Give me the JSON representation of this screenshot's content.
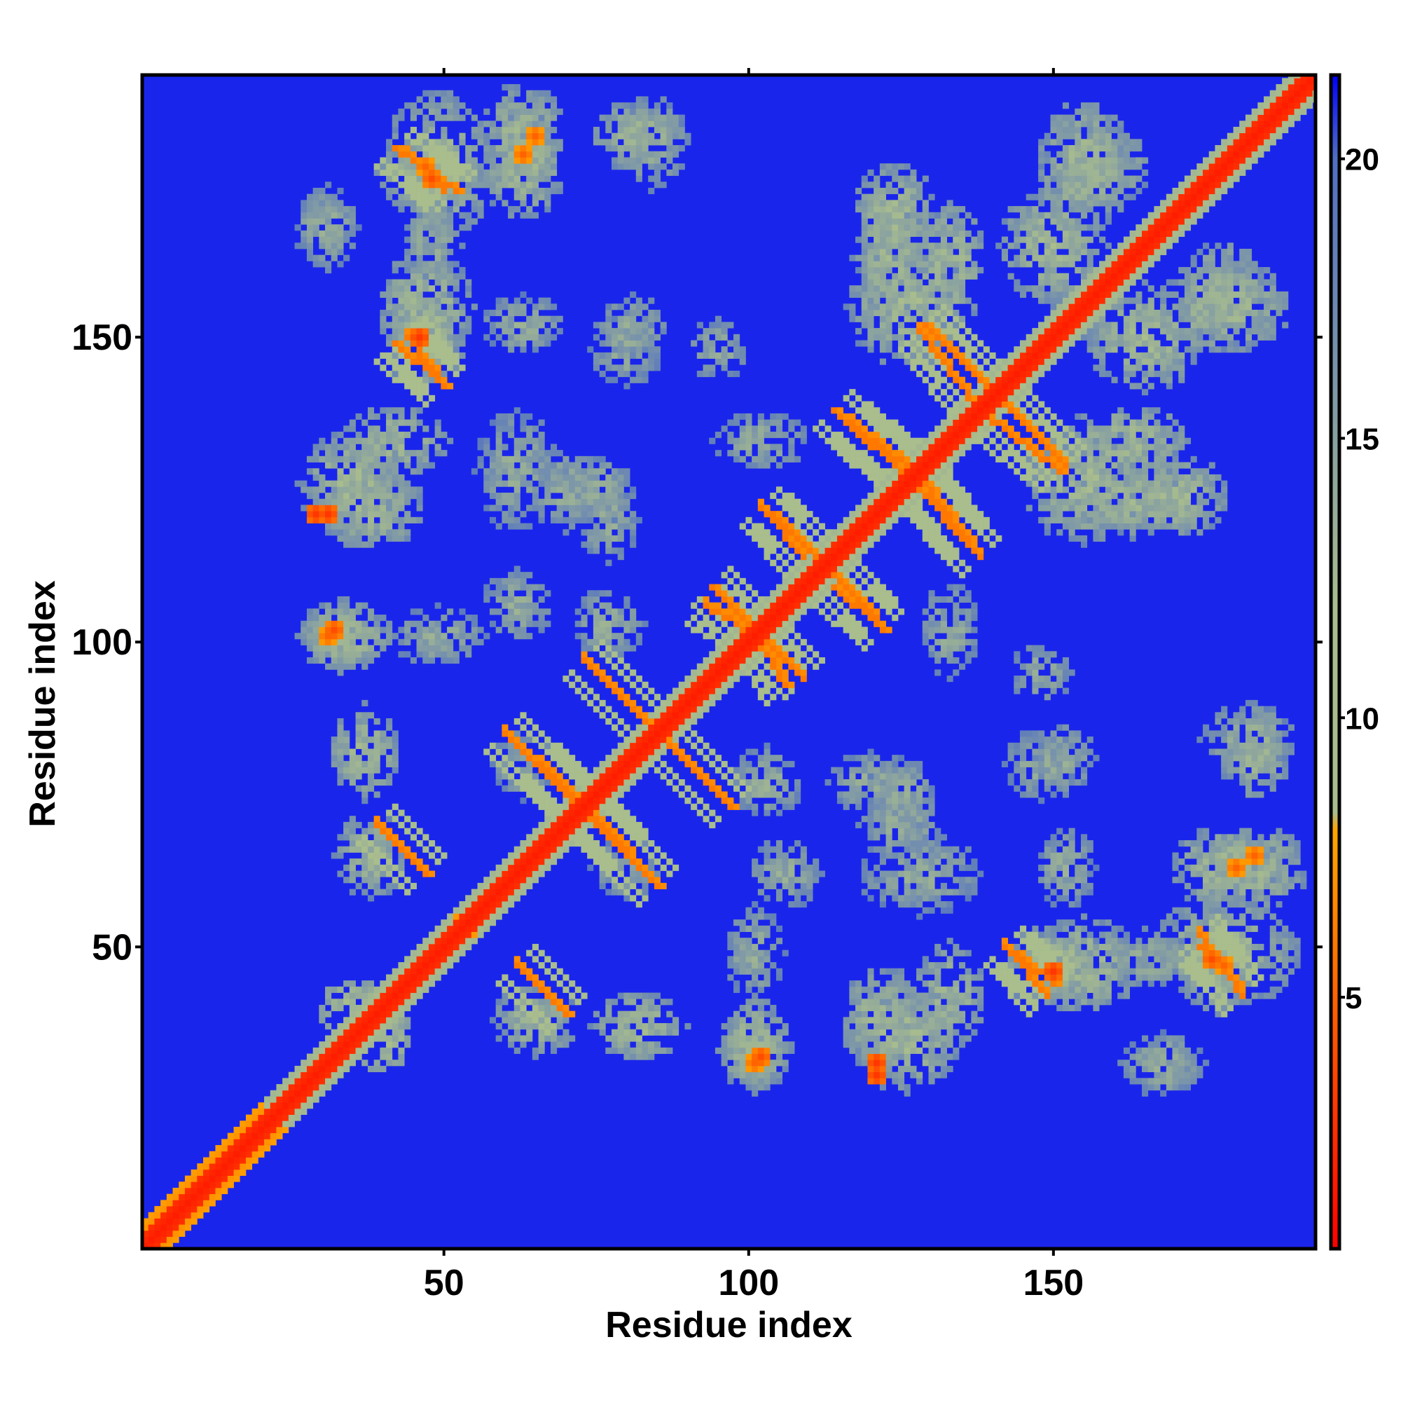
{
  "chart_data": {
    "type": "heatmap",
    "title": "",
    "xlabel": "Residue index",
    "ylabel": "Residue index",
    "xlim": [
      1,
      193
    ],
    "ylim": [
      1,
      193
    ],
    "x_ticks": [
      50,
      100,
      150
    ],
    "y_ticks": [
      50,
      100,
      150
    ],
    "colorbar": {
      "ticks": [
        5,
        10,
        15,
        20
      ],
      "range": [
        0.5,
        21.5
      ],
      "stops": [
        {
          "value": 0.5,
          "color": "#ff0000"
        },
        {
          "value": 8.0,
          "color": "#ffa500"
        },
        {
          "value": 8.3,
          "color": "#a9bd8d"
        },
        {
          "value": 12.0,
          "color": "#a9bd8d"
        },
        {
          "value": 20.0,
          "color": "#4f6fc4"
        },
        {
          "value": 21.5,
          "color": "#0000ff"
        }
      ]
    },
    "background_value": 21,
    "grid": false,
    "legend": "colorbar-right",
    "features": {
      "diagonal_band": [
        {
          "from": 1,
          "to": 193,
          "value": 1.8,
          "half_width": 1.2
        },
        {
          "from": 1,
          "to": 20,
          "value": 6,
          "half_width": 4
        },
        {
          "from": 20,
          "to": 193,
          "value": 11,
          "half_width": 4
        }
      ],
      "antiparallel_strands": [
        {
          "start": [
            60,
            85
          ],
          "end": [
            75,
            70
          ],
          "value": 6
        },
        {
          "start": [
            73,
            97
          ],
          "end": [
            87,
            83
          ],
          "value": 6
        },
        {
          "start": [
            86,
            84
          ],
          "end": [
            97,
            73
          ],
          "value": 6
        },
        {
          "start": [
            74,
            72
          ],
          "end": [
            85,
            60
          ],
          "value": 6
        },
        {
          "start": [
            94,
            109
          ],
          "end": [
            105,
            98
          ],
          "value": 6
        },
        {
          "start": [
            100,
            103
          ],
          "end": [
            106,
            93
          ],
          "value": 6
        },
        {
          "start": [
            104,
            121
          ],
          "end": [
            112,
            113
          ],
          "value": 6
        },
        {
          "start": [
            114,
            109
          ],
          "end": [
            122,
            102
          ],
          "value": 6
        },
        {
          "start": [
            114,
            138
          ],
          "end": [
            128,
            125
          ],
          "value": 6
        },
        {
          "start": [
            129,
            152
          ],
          "end": [
            141,
            140
          ],
          "value": 6
        },
        {
          "start": [
            139,
            137
          ],
          "end": [
            151,
            128
          ],
          "value": 6
        },
        {
          "start": [
            129,
            126
          ],
          "end": [
            137,
            115
          ],
          "value": 6
        },
        {
          "start": [
            42,
            149
          ],
          "end": [
            50,
            142
          ],
          "value": 6
        },
        {
          "start": [
            42,
            181
          ],
          "end": [
            52,
            174
          ],
          "value": 6
        },
        {
          "start": [
            39,
            70
          ],
          "end": [
            47,
            62
          ],
          "value": 6
        },
        {
          "start": [
            63,
            46
          ],
          "end": [
            70,
            39
          ],
          "value": 6
        },
        {
          "start": [
            142,
            50
          ],
          "end": [
            150,
            44
          ],
          "value": 6
        },
        {
          "start": [
            174,
            50
          ],
          "end": [
            180,
            44
          ],
          "value": 6
        }
      ],
      "contact_blobs": [
        {
          "center": [
            49,
            178
          ],
          "rx": 9,
          "ry": 13,
          "value": 11
        },
        {
          "center": [
            63,
            178
          ],
          "rx": 7,
          "ry": 9,
          "value": 11
        },
        {
          "center": [
            82,
            183
          ],
          "rx": 8,
          "ry": 6,
          "value": 11
        },
        {
          "center": [
            30,
            168
          ],
          "rx": 5,
          "ry": 6,
          "value": 12
        },
        {
          "center": [
            47,
            155
          ],
          "rx": 8,
          "ry": 10,
          "value": 11
        },
        {
          "center": [
            63,
            152
          ],
          "rx": 7,
          "ry": 5,
          "value": 12
        },
        {
          "center": [
            80,
            148
          ],
          "rx": 6,
          "ry": 6,
          "value": 12
        },
        {
          "center": [
            95,
            148
          ],
          "rx": 5,
          "ry": 5,
          "value": 12
        },
        {
          "center": [
            35,
            126
          ],
          "rx": 9,
          "ry": 9,
          "value": 11
        },
        {
          "center": [
            62,
            128
          ],
          "rx": 7,
          "ry": 10,
          "value": 12
        },
        {
          "center": [
            102,
            133
          ],
          "rx": 8,
          "ry": 5,
          "value": 12
        },
        {
          "center": [
            75,
            125
          ],
          "rx": 6,
          "ry": 6,
          "value": 12
        },
        {
          "center": [
            34,
            101
          ],
          "rx": 8,
          "ry": 6,
          "value": 11
        },
        {
          "center": [
            49,
            101
          ],
          "rx": 8,
          "ry": 5,
          "value": 12
        },
        {
          "center": [
            62,
            106
          ],
          "rx": 6,
          "ry": 6,
          "value": 12
        },
        {
          "center": [
            37,
            82
          ],
          "rx": 6,
          "ry": 8,
          "value": 11
        },
        {
          "center": [
            103,
            77
          ],
          "rx": 6,
          "ry": 6,
          "value": 12
        },
        {
          "center": [
            120,
            77
          ],
          "rx": 7,
          "ry": 5,
          "value": 12
        },
        {
          "center": [
            155,
            126
          ],
          "rx": 10,
          "ry": 10,
          "value": 11
        },
        {
          "center": [
            170,
            124
          ],
          "rx": 9,
          "ry": 7,
          "value": 11
        },
        {
          "center": [
            155,
            178
          ],
          "rx": 8,
          "ry": 11,
          "value": 11
        },
        {
          "center": [
            123,
            163
          ],
          "rx": 6,
          "ry": 11,
          "value": 11
        },
        {
          "center": [
            133,
            162
          ],
          "rx": 6,
          "ry": 11,
          "value": 11
        },
        {
          "center": [
            165,
            150
          ],
          "rx": 10,
          "ry": 9,
          "value": 11
        },
        {
          "center": [
            178,
            157
          ],
          "rx": 7,
          "ry": 9,
          "value": 11
        },
        {
          "center": [
            182,
            84
          ],
          "rx": 8,
          "ry": 6,
          "value": 12
        },
        {
          "center": [
            152,
            81
          ],
          "rx": 5,
          "ry": 6,
          "value": 12
        },
        {
          "center": [
            183,
            63
          ],
          "rx": 9,
          "ry": 7,
          "value": 11
        },
        {
          "center": [
            150,
            47
          ],
          "rx": 9,
          "ry": 7,
          "value": 11
        },
        {
          "center": [
            165,
            48
          ],
          "rx": 8,
          "ry": 5,
          "value": 12
        },
        {
          "center": [
            177,
            46
          ],
          "rx": 6,
          "ry": 7,
          "value": 11
        },
        {
          "center": [
            122,
            38
          ],
          "rx": 7,
          "ry": 9,
          "value": 11
        },
        {
          "center": [
            133,
            42
          ],
          "rx": 6,
          "ry": 9,
          "value": 11
        },
        {
          "center": [
            101,
            33
          ],
          "rx": 6,
          "ry": 7,
          "value": 11
        },
        {
          "center": [
            168,
            31
          ],
          "rx": 7,
          "ry": 5,
          "value": 12
        },
        {
          "center": [
            35,
            39
          ],
          "rx": 6,
          "ry": 6,
          "value": 10
        },
        {
          "center": [
            65,
            38
          ],
          "rx": 7,
          "ry": 6,
          "value": 11
        },
        {
          "center": [
            125,
            70
          ],
          "rx": 7,
          "ry": 6,
          "value": 12
        },
        {
          "center": [
            80,
            63
          ],
          "rx": 6,
          "ry": 5,
          "value": 12
        }
      ],
      "hotspots": [
        {
          "center": [
            31,
            121
          ],
          "value": 3
        },
        {
          "center": [
            32,
            102
          ],
          "value": 4
        },
        {
          "center": [
            101,
            31
          ],
          "value": 5
        },
        {
          "center": [
            121,
            29
          ],
          "value": 3
        },
        {
          "center": [
            54,
            53
          ],
          "value": 5
        },
        {
          "center": [
            183,
            65
          ],
          "value": 5
        },
        {
          "center": [
            176,
            48
          ],
          "value": 4
        },
        {
          "center": [
            150,
            46
          ],
          "value": 3
        },
        {
          "center": [
            47,
            178
          ],
          "value": 5
        },
        {
          "center": [
            63,
            180
          ],
          "value": 5
        }
      ]
    }
  }
}
